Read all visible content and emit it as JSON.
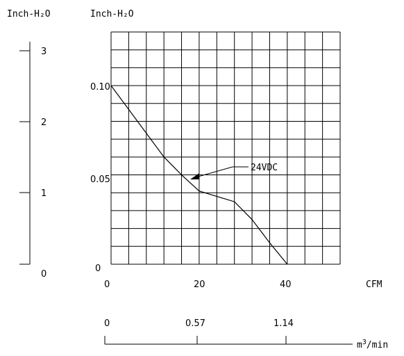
{
  "chart_data": {
    "type": "line",
    "left_axis_label": "Inch-H₂O",
    "inner_axis_label": "Inch-H₂O",
    "left_axis_ticks": [
      "3",
      "2",
      "1",
      "0"
    ],
    "left_axis_range": [
      0,
      3
    ],
    "inner_axis_ticks": [
      "0.10",
      "0.05",
      "0"
    ],
    "inner_axis_range": [
      0,
      0.13
    ],
    "x_axis_unit": "CFM",
    "x_axis_ticks": [
      "0",
      "20",
      "40"
    ],
    "x_axis_range": [
      0,
      52
    ],
    "secondary_x_unit": "m³/min",
    "secondary_x_ticks": [
      "0",
      "0.57",
      "1.14"
    ],
    "grid": true,
    "series": [
      {
        "name": "24VDC",
        "x": [
          0,
          6,
          12,
          16,
          20,
          24,
          28,
          32,
          36,
          40
        ],
        "y": [
          0.1,
          0.08,
          0.06,
          0.05,
          0.041,
          0.038,
          0.035,
          0.025,
          0.012,
          0
        ]
      }
    ]
  }
}
